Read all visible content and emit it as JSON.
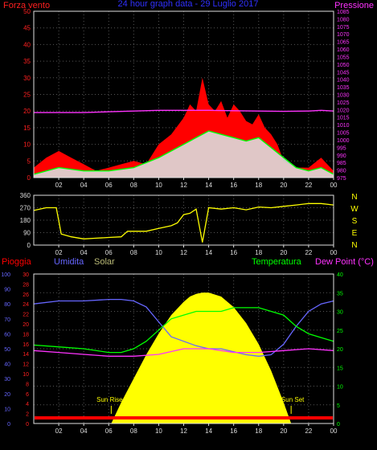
{
  "panels": {
    "wind": {
      "title_left": "Forza vento",
      "title_center": "24 hour graph data - 29 Luglio 2017",
      "title_right": "Pressione",
      "title_left_color": "#ff2020",
      "title_center_color": "#3030ff",
      "title_right_color": "#ff33ff"
    },
    "direction": {
      "compass": [
        "N",
        "W",
        "S",
        "E",
        "N"
      ],
      "compass_color": "#ffff00"
    },
    "weather": {
      "label_rain": "Pioggia",
      "label_humidity": "Umidita",
      "label_solar": "Solar",
      "label_temp": "Temperatura",
      "label_dew": "Dew Point (°C)",
      "sun_rise": "Sun Rise",
      "sun_set": "Sun Set"
    }
  },
  "chart_data": [
    {
      "type": "area",
      "id": "wind-pressure",
      "x_ticks": [
        "02",
        "04",
        "06",
        "08",
        "10",
        "12",
        "14",
        "16",
        "18",
        "20",
        "22",
        "00"
      ],
      "ylim_left": [
        0,
        50
      ],
      "yticks_left": [
        0,
        5,
        10,
        15,
        20,
        25,
        30,
        35,
        40,
        45,
        50
      ],
      "ylim_right": [
        975,
        1085
      ],
      "yticks_right": [
        975,
        980,
        985,
        990,
        995,
        1000,
        1005,
        1010,
        1015,
        1020,
        1025,
        1030,
        1035,
        1040,
        1045,
        1050,
        1055,
        1060,
        1065,
        1070,
        1075,
        1080,
        1085
      ],
      "grid": true,
      "series": [
        {
          "name": "Forza vento",
          "color": "#ff0000",
          "kind": "gust",
          "x": [
            0,
            1,
            2,
            3,
            4,
            5,
            6,
            7,
            8,
            9,
            10,
            11,
            12,
            12.5,
            13,
            13.5,
            14,
            14.5,
            15,
            15.5,
            16,
            16.5,
            17,
            17.5,
            18,
            18.5,
            19,
            19.5,
            20,
            21,
            22,
            23,
            24
          ],
          "y": [
            3,
            6,
            8,
            6,
            4,
            2,
            3,
            4,
            5,
            4,
            10,
            13,
            18,
            22,
            20,
            30,
            22,
            20,
            23,
            18,
            22,
            20,
            17,
            16,
            19,
            15,
            13,
            10,
            5,
            3,
            3,
            6,
            2
          ]
        },
        {
          "name": "",
          "color": "#00ff00",
          "kind": "average",
          "x": [
            0,
            2,
            4,
            6,
            8,
            10,
            11,
            12,
            13,
            14,
            15,
            16,
            17,
            18,
            19,
            20,
            21,
            22,
            23,
            24
          ],
          "y": [
            1,
            3,
            2,
            2,
            3,
            6,
            8,
            10,
            12,
            14,
            13,
            12,
            11,
            12,
            9,
            6,
            3,
            2,
            3,
            1
          ]
        },
        {
          "name": "Pressione",
          "color": "#ff33ff",
          "kind": "pressure",
          "x": [
            0,
            2,
            4,
            6,
            8,
            10,
            12,
            14,
            16,
            18,
            20,
            22,
            23,
            24
          ],
          "y": [
            1018,
            1018,
            1018,
            1018.5,
            1019,
            1019.5,
            1019.5,
            1019.5,
            1019.2,
            1019,
            1018.8,
            1019,
            1019.5,
            1019
          ]
        }
      ]
    },
    {
      "type": "line",
      "id": "wind-direction",
      "x_ticks": [
        "02",
        "04",
        "06",
        "08",
        "10",
        "12",
        "14",
        "16",
        "18",
        "20",
        "22",
        "00"
      ],
      "ylim": [
        0,
        360
      ],
      "yticks": [
        0,
        90,
        180,
        270,
        360
      ],
      "series": [
        {
          "name": "",
          "color": "#ffff00",
          "x": [
            0,
            1,
            1.8,
            2.2,
            3,
            4,
            5,
            6,
            7,
            7.5,
            8,
            9,
            10,
            11,
            11.5,
            12,
            12.5,
            13,
            13.5,
            14,
            15,
            16,
            17,
            18,
            19,
            20,
            21,
            22,
            23,
            24
          ],
          "y": [
            250,
            270,
            270,
            80,
            60,
            45,
            50,
            55,
            60,
            100,
            100,
            100,
            120,
            140,
            160,
            220,
            230,
            260,
            20,
            270,
            260,
            270,
            255,
            275,
            270,
            280,
            290,
            300,
            300,
            290
          ]
        }
      ]
    },
    {
      "type": "area",
      "id": "weather",
      "x_ticks": [
        "02",
        "04",
        "06",
        "08",
        "10",
        "12",
        "14",
        "16",
        "18",
        "20",
        "22",
        "00"
      ],
      "ylim_left_humidity": [
        0,
        100
      ],
      "yticks_left_humidity": [
        0,
        10,
        20,
        30,
        40,
        50,
        60,
        70,
        80,
        90,
        100
      ],
      "ylim_left_rain": [
        0,
        30
      ],
      "yticks_left_rain": [
        0,
        2,
        4,
        6,
        8,
        10,
        12,
        14,
        16,
        18,
        20,
        22,
        24,
        26,
        28,
        30
      ],
      "ylim_right": [
        0,
        40
      ],
      "yticks_right": [
        0,
        5,
        10,
        15,
        20,
        25,
        30,
        35,
        40
      ],
      "sun_rise_x": 6.2,
      "sun_set_x": 20.6,
      "series": [
        {
          "name": "Umidita",
          "color": "#6666ff",
          "x": [
            0,
            2,
            4,
            6,
            7,
            8,
            9,
            10,
            11,
            12,
            13,
            14,
            15,
            16,
            17,
            18,
            19,
            20,
            21,
            22,
            23,
            24
          ],
          "y": [
            80,
            82,
            82,
            83,
            83,
            82,
            78,
            68,
            58,
            55,
            52,
            50,
            50,
            48,
            46,
            45,
            46,
            53,
            65,
            75,
            80,
            82
          ]
        },
        {
          "name": "Temperatura",
          "color": "#00ff00",
          "x": [
            0,
            2,
            4,
            6,
            7,
            8,
            9,
            10,
            11,
            12,
            13,
            14,
            15,
            16,
            17,
            18,
            19,
            20,
            21,
            22,
            23,
            24
          ],
          "y": [
            21,
            20.5,
            20,
            19,
            19,
            20,
            22,
            25,
            28,
            29,
            30,
            30,
            30,
            31,
            31,
            31,
            30,
            29,
            26,
            24,
            23,
            22
          ]
        },
        {
          "name": "Dew Point",
          "color": "#ff33ff",
          "x": [
            0,
            2,
            4,
            6,
            8,
            10,
            12,
            14,
            16,
            18,
            20,
            22,
            24
          ],
          "y": [
            19.5,
            19,
            18.5,
            18,
            18,
            18.5,
            20,
            20,
            19,
            19,
            19.5,
            20,
            19.5
          ]
        },
        {
          "name": "Solar",
          "color": "#ffff00",
          "x": [
            0,
            6.2,
            7,
            8,
            9,
            10,
            11,
            12,
            12.5,
            13,
            13.5,
            14,
            15,
            16,
            17,
            18,
            19,
            20,
            20.6,
            24
          ],
          "y": [
            0,
            0,
            80,
            170,
            260,
            340,
            410,
            460,
            480,
            490,
            495,
            495,
            480,
            440,
            380,
            300,
            200,
            80,
            0,
            0
          ]
        },
        {
          "name": "Pioggia",
          "color": "#ff0000",
          "x": [
            0,
            24
          ],
          "y": [
            0.8,
            0.8
          ]
        }
      ]
    }
  ]
}
